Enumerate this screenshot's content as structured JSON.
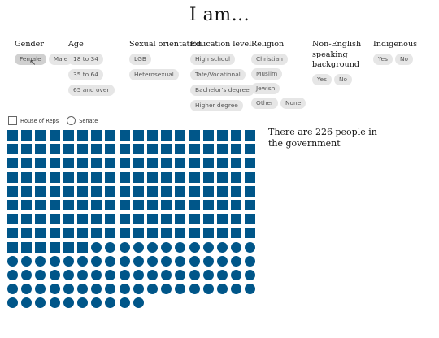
{
  "title": "I am...",
  "filters": {
    "gender": {
      "label": "Gender",
      "options": [
        "Female",
        "Male"
      ]
    },
    "age": {
      "label": "Age",
      "options": [
        "18 to 34",
        "35 to 64",
        "65 and over"
      ]
    },
    "sexual_orientation": {
      "label": "Sexual orientation",
      "options": [
        "LGB",
        "Heterosexual"
      ]
    },
    "education": {
      "label": "Education level",
      "options": [
        "High school",
        "Tafe/Vocational",
        "Bachelor's degree",
        "Higher degree"
      ]
    },
    "religion": {
      "label": "Religion",
      "options": [
        "Christian",
        "Muslim",
        "Jewish",
        "Other",
        "None"
      ]
    },
    "non_english": {
      "label": "Non-English speaking background",
      "options": [
        "Yes",
        "No"
      ]
    },
    "indigenous": {
      "label": "Indigenous",
      "options": [
        "Yes",
        "No"
      ]
    }
  },
  "legend": {
    "house": "House of Reps",
    "senate": "Senate"
  },
  "summary": "There are 226 people in the government",
  "counts": {
    "house_of_reps": 150,
    "senate": 76,
    "total": 226
  },
  "colors": {
    "mark": "#005689"
  }
}
